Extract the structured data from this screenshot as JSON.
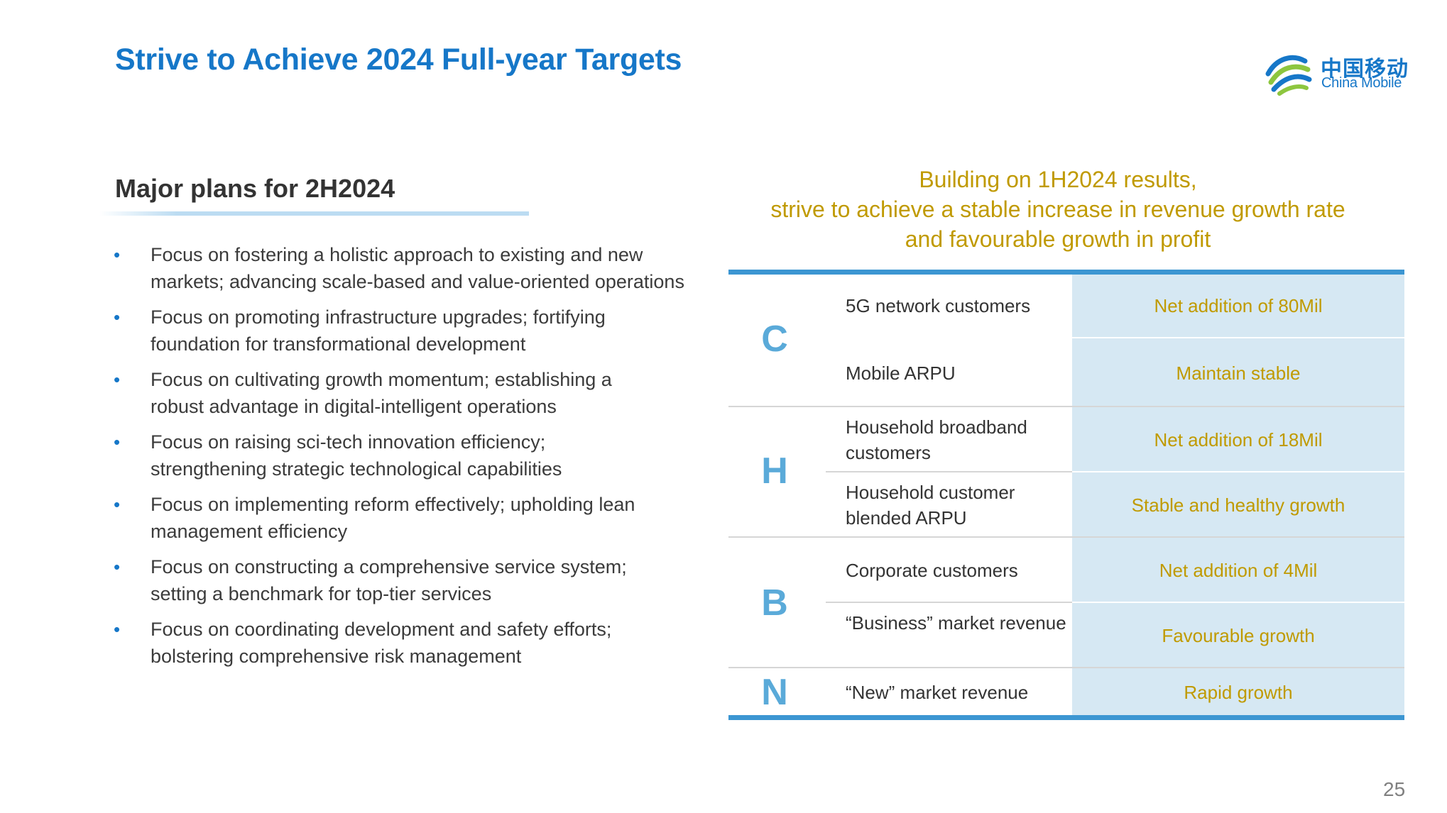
{
  "header": {
    "title": "Strive to Achieve 2024 Full-year Targets",
    "logo_cn": "中国移动",
    "logo_en": "China Mobile"
  },
  "plans": {
    "title": "Major plans for 2H2024",
    "bullet_symbol": "•",
    "items": [
      "Focus on fostering a holistic approach to existing and new markets;  advancing scale-based and value-oriented operations",
      "Focus on promoting infrastructure upgrades; fortifying foundation for transformational development",
      "Focus on cultivating growth momentum; establishing a robust advantage in digital-intelligent operations",
      "Focus on raising sci-tech innovation efficiency; strengthening strategic technological capabilities",
      "Focus on implementing reform effectively; upholding lean management efficiency",
      "Focus on constructing a comprehensive service system; setting a benchmark for top-tier services",
      "Focus on coordinating development and safety efforts; bolstering comprehensive risk management"
    ]
  },
  "targets": {
    "headline": [
      "Building on 1H2024 results,",
      "strive to achieve a stable increase in revenue growth rate",
      "and favourable growth in profit"
    ],
    "groups": [
      {
        "letter": "C",
        "rows": [
          {
            "metric": "5G network customers",
            "target": "Net addition of 80Mil"
          },
          {
            "metric": "Mobile ARPU",
            "target": "Maintain stable"
          }
        ]
      },
      {
        "letter": "H",
        "rows": [
          {
            "metric": "Household broadband customers",
            "target": "Net addition of 18Mil"
          },
          {
            "metric": "Household customer blended ARPU",
            "target": "Stable and healthy growth"
          }
        ]
      },
      {
        "letter": "B",
        "rows": [
          {
            "metric": "Corporate customers",
            "target": "Net addition of 4Mil"
          },
          {
            "metric": "“Business” market revenue",
            "target": "Favourable growth"
          }
        ]
      },
      {
        "letter": "N",
        "rows": [
          {
            "metric": "“New” market revenue",
            "target": "Rapid growth"
          }
        ]
      }
    ]
  },
  "footer": {
    "page_number": "25"
  },
  "colors": {
    "title_blue": "#1677C8",
    "gold": "#C09A00",
    "table_bar": "#3C96D2",
    "value_bg": "#D6E8F3",
    "letter_blue": "#5AAAD9"
  }
}
